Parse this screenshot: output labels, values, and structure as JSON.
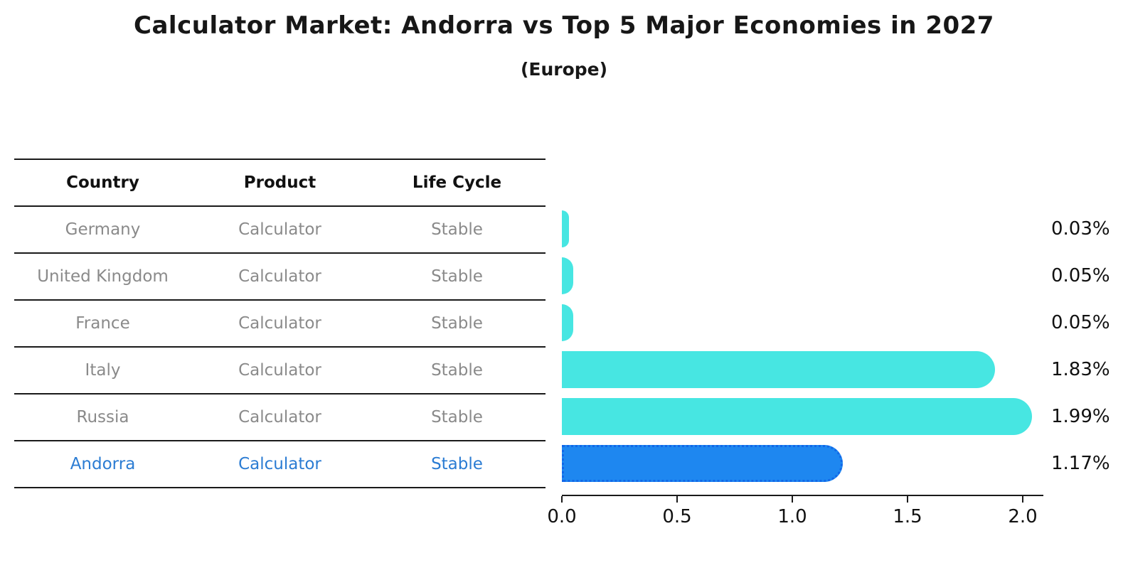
{
  "title": "Calculator Market: Andorra vs Top 5 Major Economies in 2027",
  "subtitle": "(Europe)",
  "table": {
    "headers": [
      "Country",
      "Product",
      "Life Cycle"
    ],
    "rows": [
      {
        "country": "Germany",
        "product": "Calculator",
        "life_cycle": "Stable",
        "highlighted": false
      },
      {
        "country": "United Kingdom",
        "product": "Calculator",
        "life_cycle": "Stable",
        "highlighted": false
      },
      {
        "country": "France",
        "product": "Calculator",
        "life_cycle": "Stable",
        "highlighted": false
      },
      {
        "country": "Italy",
        "product": "Calculator",
        "life_cycle": "Stable",
        "highlighted": false
      },
      {
        "country": "Russia",
        "product": "Calculator",
        "life_cycle": "Stable",
        "highlighted": false
      },
      {
        "country": "Andorra",
        "product": "Calculator",
        "life_cycle": "Stable",
        "highlighted": true
      }
    ]
  },
  "chart_data": {
    "type": "bar",
    "orientation": "horizontal",
    "categories": [
      "Germany",
      "United Kingdom",
      "France",
      "Italy",
      "Russia",
      "Andorra"
    ],
    "values": [
      0.03,
      0.05,
      0.05,
      1.83,
      1.99,
      1.17
    ],
    "value_labels": [
      "0.03%",
      "0.05%",
      "0.05%",
      "1.83%",
      "1.99%",
      "1.17%"
    ],
    "highlight_index": 5,
    "x_tick_labels": [
      "0.0",
      "0.5",
      "1.0",
      "1.5",
      "2.0"
    ],
    "x_tick_values": [
      0.0,
      0.5,
      1.0,
      1.5,
      2.0
    ],
    "xlim": [
      0,
      2.09
    ],
    "grid": false,
    "legend": "none",
    "title": "Calculator Market: Andorra vs Top 5 Major Economies in 2027",
    "subtitle": "(Europe)",
    "xlabel": "",
    "ylabel": ""
  },
  "colors": {
    "bar_default": "#47e6e2",
    "bar_highlight": "#1e87f0",
    "bar_highlight_border": "#1167e8",
    "row_text": "#8a8a8a",
    "highlight_text": "#2b7cd3",
    "axis": "#1a1a1a",
    "label_text": "#111111"
  }
}
